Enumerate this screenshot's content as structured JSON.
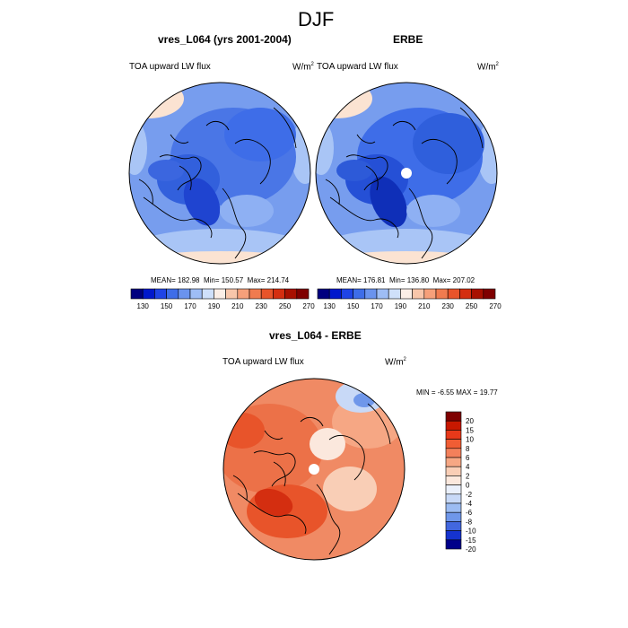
{
  "figure": {
    "title": "DJF",
    "variable": "TOA upward LW flux",
    "units_base": "W/m",
    "units_exp": "2"
  },
  "panels": {
    "model": {
      "title": "vres_L064 (yrs 2001-2004)",
      "stats": {
        "mean": "MEAN= 182.98",
        "min": "Min= 150.57",
        "max": "Max= 214.74"
      }
    },
    "obs": {
      "title": "ERBE",
      "stats": {
        "mean": "MEAN= 176.81",
        "min": "Min= 136.80",
        "max": "Max= 207.02"
      }
    },
    "diff": {
      "title": "vres_L064 - ERBE",
      "stats": {
        "minmax": "MIN =  -6.55 MAX =  19.77"
      }
    }
  },
  "colorbars": {
    "abs": {
      "colors": [
        "#00007f",
        "#0018cc",
        "#1f44e6",
        "#3e6de8",
        "#6a93ee",
        "#9ebdf5",
        "#cfe0fa",
        "#fbeee6",
        "#f8c6aa",
        "#f6a07a",
        "#f07b4f",
        "#e8542a",
        "#d42e10",
        "#a81000",
        "#7f0000"
      ],
      "labels": [
        "130",
        "150",
        "170",
        "190",
        "210",
        "230",
        "250",
        "270"
      ]
    },
    "diff": {
      "colors": [
        "#7f0000",
        "#c81800",
        "#e8391a",
        "#f05d34",
        "#f3805b",
        "#f6a784",
        "#f9ceb6",
        "#fbe8dd",
        "#eaf0fb",
        "#c8d9f7",
        "#9cbcf2",
        "#6f97ea",
        "#4267df",
        "#1533cf",
        "#00008a"
      ],
      "labels": [
        "20",
        "15",
        "10",
        "8",
        "6",
        "4",
        "2",
        "0",
        "-2",
        "-4",
        "-6",
        "-8",
        "-10",
        "-15",
        "-20"
      ]
    }
  }
}
